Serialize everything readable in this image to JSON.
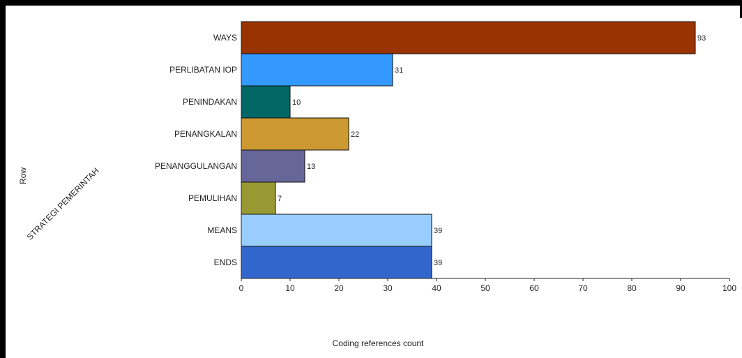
{
  "chart_data": {
    "type": "bar",
    "orientation": "horizontal",
    "categories": [
      "WAYS",
      "PERLIBATAN IOP",
      "PENINDAKAN",
      "PENANGKALAN",
      "PENANGGULANGAN",
      "PEMULIHAN",
      "MEANS",
      "ENDS"
    ],
    "values": [
      93,
      31,
      10,
      22,
      13,
      7,
      39,
      39
    ],
    "colors": [
      "#993300",
      "#3399FF",
      "#006666",
      "#CC9933",
      "#666699",
      "#999933",
      "#99CCFF",
      "#3366CC"
    ],
    "xlabel": "Coding references count",
    "ylabel_outer": "Row",
    "ylabel_inner": "STRATEGI PEMERINTAH",
    "xlim": [
      0,
      100
    ],
    "xticks": [
      0,
      10,
      20,
      30,
      40,
      50,
      60,
      70,
      80,
      90,
      100
    ],
    "grid": false
  }
}
